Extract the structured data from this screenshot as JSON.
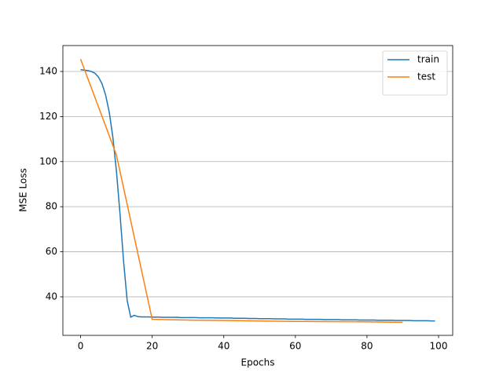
{
  "chart_data": {
    "type": "line",
    "xlabel": "Epochs",
    "ylabel": "MSE Loss",
    "xlim": [
      -4.95,
      103.95
    ],
    "ylim": [
      22.9,
      151.5
    ],
    "xticks": [
      0,
      20,
      40,
      60,
      80,
      100
    ],
    "yticks": [
      40,
      60,
      80,
      100,
      120,
      140
    ],
    "grid": "y",
    "legend": "upper right",
    "series": [
      {
        "name": "train",
        "color": "#1f77b4",
        "x": [
          0,
          1,
          2,
          3,
          4,
          5,
          6,
          7,
          8,
          9,
          10,
          11,
          12,
          13,
          14,
          15,
          16,
          17,
          18,
          19,
          20,
          21,
          22,
          23,
          24,
          25,
          26,
          27,
          28,
          29,
          30,
          31,
          32,
          33,
          34,
          35,
          36,
          37,
          38,
          39,
          40,
          41,
          42,
          43,
          44,
          45,
          46,
          47,
          48,
          49,
          50,
          51,
          52,
          53,
          54,
          55,
          56,
          57,
          58,
          59,
          60,
          61,
          62,
          63,
          64,
          65,
          66,
          67,
          68,
          69,
          70,
          71,
          72,
          73,
          74,
          75,
          76,
          77,
          78,
          79,
          80,
          81,
          82,
          83,
          84,
          85,
          86,
          87,
          88,
          89,
          90,
          91,
          92,
          93,
          94,
          95,
          96,
          97,
          98,
          99
        ],
        "values": [
          140.8,
          140.6,
          140.4,
          140.0,
          139.2,
          137.5,
          134.5,
          129.5,
          122.0,
          111.0,
          96.0,
          77.0,
          56.0,
          38.5,
          31.0,
          31.8,
          31.2,
          31.1,
          31.1,
          31.1,
          31.0,
          31.0,
          31.0,
          30.9,
          30.9,
          30.9,
          30.9,
          30.9,
          30.8,
          30.8,
          30.8,
          30.8,
          30.8,
          30.7,
          30.7,
          30.7,
          30.7,
          30.7,
          30.6,
          30.6,
          30.6,
          30.6,
          30.6,
          30.5,
          30.5,
          30.5,
          30.5,
          30.4,
          30.4,
          30.4,
          30.3,
          30.3,
          30.3,
          30.3,
          30.2,
          30.2,
          30.2,
          30.2,
          30.1,
          30.1,
          30.1,
          30.1,
          30.1,
          30.0,
          30.0,
          30.0,
          30.0,
          30.0,
          29.9,
          29.9,
          29.9,
          29.9,
          29.9,
          29.8,
          29.8,
          29.8,
          29.8,
          29.8,
          29.7,
          29.7,
          29.7,
          29.7,
          29.7,
          29.6,
          29.6,
          29.6,
          29.6,
          29.6,
          29.5,
          29.5,
          29.5,
          29.5,
          29.5,
          29.4,
          29.4,
          29.4,
          29.4,
          29.4,
          29.3,
          29.3
        ]
      },
      {
        "name": "test",
        "color": "#ff7f0e",
        "x": [
          0,
          10,
          20,
          30,
          40,
          50,
          60,
          70,
          80,
          90
        ],
        "values": [
          145.5,
          103.0,
          30.0,
          29.7,
          29.5,
          29.3,
          29.1,
          29.0,
          28.9,
          28.7
        ]
      }
    ]
  }
}
